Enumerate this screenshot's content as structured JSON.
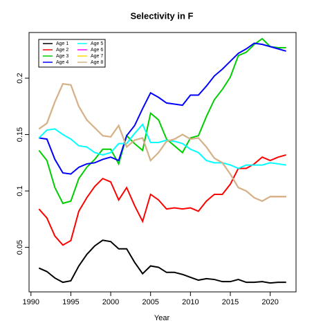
{
  "chart_data": {
    "type": "line",
    "title": "Selectivity in F",
    "x_label": "Year",
    "x": [
      1991,
      1992,
      1993,
      1994,
      1995,
      1996,
      1997,
      1998,
      1999,
      2000,
      2001,
      2002,
      2003,
      2004,
      2005,
      2006,
      2007,
      2008,
      2009,
      2010,
      2011,
      2012,
      2013,
      2014,
      2015,
      2016,
      2017,
      2018,
      2019,
      2020,
      2021,
      2022
    ],
    "xlim": [
      1989.76,
      2023.24
    ],
    "xticks": [
      1990,
      1995,
      2000,
      2005,
      2010,
      2015,
      2020
    ],
    "ylim": [
      0.0105,
      0.2405
    ],
    "yticks": [
      0.05,
      0.1,
      0.15,
      0.2
    ],
    "legend": "topleft",
    "series": [
      {
        "name": "Age 1",
        "color": "#000000",
        "values": [
          0.0316,
          0.0285,
          0.0228,
          0.019,
          0.0203,
          0.0335,
          0.0437,
          0.0513,
          0.0563,
          0.0551,
          0.0487,
          0.0487,
          0.0367,
          0.0266,
          0.0335,
          0.0323,
          0.0278,
          0.0278,
          0.026,
          0.0234,
          0.0209,
          0.0222,
          0.0215,
          0.0196,
          0.0196,
          0.0215,
          0.019,
          0.019,
          0.0196,
          0.0184,
          0.019,
          0.019
        ]
      },
      {
        "name": "Age 2",
        "color": "#ff0000",
        "values": [
          0.084,
          0.076,
          0.06,
          0.052,
          0.056,
          0.082,
          0.094,
          0.104,
          0.111,
          0.108,
          0.092,
          0.103,
          0.087,
          0.073,
          0.097,
          0.092,
          0.084,
          0.085,
          0.084,
          0.085,
          0.082,
          0.091,
          0.097,
          0.097,
          0.106,
          0.12,
          0.12,
          0.124,
          0.13,
          0.127,
          0.13,
          0.132
        ]
      },
      {
        "name": "Age 3",
        "color": "#00cd00",
        "values": [
          0.136,
          0.127,
          0.103,
          0.089,
          0.091,
          0.111,
          0.121,
          0.128,
          0.137,
          0.137,
          0.124,
          0.149,
          0.142,
          0.136,
          0.169,
          0.163,
          0.146,
          0.14,
          0.134,
          0.147,
          0.149,
          0.166,
          0.181,
          0.19,
          0.201,
          0.22,
          0.223,
          0.23,
          0.235,
          0.228,
          0.227,
          0.227
        ]
      },
      {
        "name": "Age 4",
        "color": "#0000ff",
        "values": [
          0.147,
          0.146,
          0.128,
          0.116,
          0.115,
          0.121,
          0.124,
          0.125,
          0.128,
          0.13,
          0.127,
          0.149,
          0.158,
          0.173,
          0.187,
          0.183,
          0.178,
          0.177,
          0.176,
          0.185,
          0.185,
          0.193,
          0.202,
          0.208,
          0.215,
          0.222,
          0.226,
          0.231,
          0.23,
          0.228,
          0.226,
          0.224
        ]
      },
      {
        "name": "Age 5",
        "color": "#00ffff",
        "values": [
          0.147,
          0.154,
          0.155,
          0.15,
          0.146,
          0.14,
          0.139,
          0.134,
          0.132,
          0.134,
          0.142,
          0.142,
          0.151,
          0.159,
          0.143,
          0.143,
          0.145,
          0.144,
          0.142,
          0.137,
          0.134,
          0.127,
          0.125,
          0.125,
          0.123,
          0.12,
          0.123,
          0.123,
          0.123,
          0.125,
          0.124,
          0.123
        ]
      },
      {
        "name": "Age 6",
        "color": "#ff00ff",
        "values": [
          0.155,
          0.16,
          0.179,
          0.195,
          0.194,
          0.175,
          0.163,
          0.156,
          0.149,
          0.148,
          0.158,
          0.139,
          0.145,
          0.147,
          0.127,
          0.134,
          0.144,
          0.146,
          0.15,
          0.146,
          0.147,
          0.139,
          0.129,
          0.125,
          0.115,
          0.103,
          0.1,
          0.094,
          0.091,
          0.095,
          0.095,
          0.095
        ]
      },
      {
        "name": "Age 7",
        "color": "#ffd700",
        "values": [
          0.155,
          0.16,
          0.179,
          0.195,
          0.194,
          0.175,
          0.163,
          0.156,
          0.149,
          0.148,
          0.158,
          0.139,
          0.145,
          0.147,
          0.127,
          0.134,
          0.144,
          0.146,
          0.15,
          0.146,
          0.147,
          0.139,
          0.129,
          0.125,
          0.115,
          0.103,
          0.1,
          0.094,
          0.091,
          0.095,
          0.095,
          0.095
        ]
      },
      {
        "name": "Age 8",
        "color": "#d2b48c",
        "values": [
          0.155,
          0.16,
          0.179,
          0.195,
          0.194,
          0.175,
          0.163,
          0.156,
          0.149,
          0.148,
          0.158,
          0.139,
          0.145,
          0.147,
          0.127,
          0.134,
          0.144,
          0.146,
          0.15,
          0.146,
          0.147,
          0.139,
          0.129,
          0.125,
          0.115,
          0.103,
          0.1,
          0.094,
          0.091,
          0.095,
          0.095,
          0.095
        ]
      }
    ]
  }
}
